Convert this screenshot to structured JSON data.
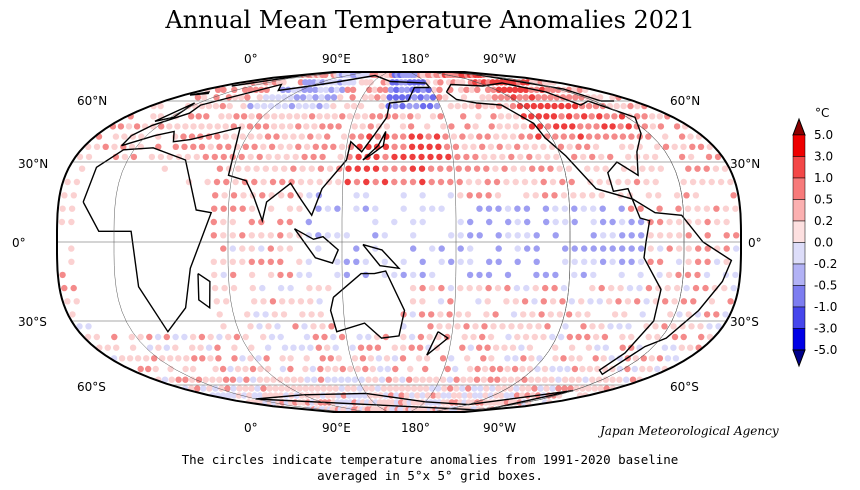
{
  "title": "Annual Mean Temperature Anomalies 2021",
  "top_longitudes": [
    "0°",
    "90°E",
    "180°",
    "90°W"
  ],
  "bottom_longitudes": [
    "0°",
    "90°E",
    "180°",
    "90°W"
  ],
  "left_latitudes": [
    "60°N",
    "30°N",
    "0°",
    "30°S",
    "60°S"
  ],
  "right_latitudes": [
    "60°N",
    "30°N",
    "0°",
    "30°S",
    "60°S"
  ],
  "credit": "Japan Meteorological Agency",
  "caption": {
    "line1": "The circles indicate temperature anomalies from 1991-2020 baseline",
    "line2": "averaged in 5°x 5° grid boxes."
  },
  "legend": {
    "unit": "°C",
    "labels": [
      "5.0",
      "3.0",
      "1.0",
      "0.5",
      "0.2",
      "0.0",
      "-0.2",
      "-0.5",
      "-1.0",
      "-3.0",
      "-5.0"
    ],
    "colors": [
      "#ee0000",
      "#f34747",
      "#f77a7a",
      "#fbb0b0",
      "#fde0e0",
      "#ddddf9",
      "#b2b2f5",
      "#7d7df0",
      "#4646ec",
      "#0000e6"
    ],
    "top_arrow_color": "#8b0000",
    "bottom_arrow_color": "#00008b"
  },
  "colors": {
    "land_outline": "#000000",
    "strong_warm": "#ee3d3d",
    "warm": "#f48a8a",
    "mild_warm": "#fbd1d1",
    "mild_cool": "#d9d9fa",
    "cool": "#9e9ef2",
    "strong_cool": "#6b6bee"
  }
}
